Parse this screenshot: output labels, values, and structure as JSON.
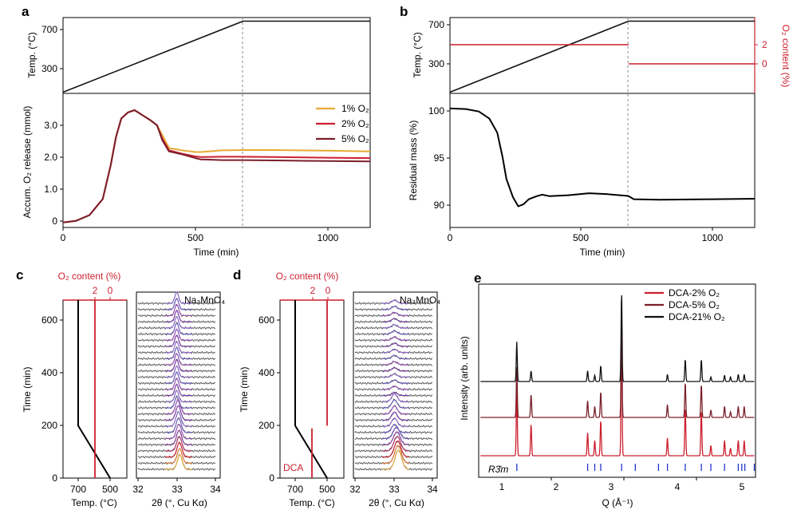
{
  "colors": {
    "o2_1": "#e8a935",
    "o2_2": "#cc1f2e",
    "o2_5": "#7a1f2b",
    "dca_21": "#111111",
    "o2_axis": "#cc1f2e",
    "dashed": "#8a8a8a",
    "tick_marks": "#2233cc"
  },
  "panels": {
    "a": {
      "label": "a",
      "temp_ylabel": "Temp. (°C)",
      "release_ylabel": "Accum. O₂ release (mmol)",
      "xlabel": "Time (min)",
      "temp_yticks": [
        "300",
        "700"
      ],
      "release_yticks": [
        "0",
        "1.0",
        "2.0",
        "3.0"
      ],
      "xticks": [
        "0",
        "500",
        "1000"
      ],
      "legend": [
        "1% O₂",
        "2% O₂",
        "5% O₂"
      ]
    },
    "b": {
      "label": "b",
      "temp_ylabel": "Temp. (°C)",
      "o2_ylabel": "O₂ content (%)",
      "mass_ylabel": "Residual mass (%)",
      "xlabel": "Time (min)",
      "temp_yticks": [
        "300",
        "700"
      ],
      "o2_yticks": [
        "2",
        "0"
      ],
      "mass_yticks": [
        "90",
        "95",
        "100"
      ],
      "xticks": [
        "0",
        "500",
        "1000"
      ]
    },
    "c": {
      "label": "c",
      "o2_title": "O₂ content (%)",
      "o2_ticks": [
        "2",
        "0"
      ],
      "ylabel": "Time (min)",
      "yticks": [
        "0",
        "200",
        "400",
        "600"
      ],
      "temp_xlabel": "Temp. (°C)",
      "temp_xticks": [
        "700",
        "500"
      ],
      "xrd_label": "Na₃MnO₄",
      "xrd_xlabel": "2θ (°, Cu Kα)",
      "xrd_xticks": [
        "32",
        "33",
        "34"
      ]
    },
    "d": {
      "label": "d",
      "o2_title": "O₂ content (%)",
      "o2_ticks": [
        "2",
        "0"
      ],
      "ylabel": "Time (min)",
      "yticks": [
        "0",
        "200",
        "400",
        "600"
      ],
      "temp_xlabel": "Temp. (°C)",
      "temp_xticks": [
        "700",
        "500"
      ],
      "dca_label": "DCA",
      "xrd_label": "Na₃MnO₄",
      "xrd_xlabel": "2θ (°, Cu Kα)",
      "xrd_xticks": [
        "32",
        "33",
        "34"
      ]
    },
    "e": {
      "label": "e",
      "ylabel": "Intensity (arb. units)",
      "xlabel": "Q (Å⁻¹)",
      "xticks": [
        "1",
        "2",
        "3",
        "4",
        "5"
      ],
      "legend": [
        "DCA-2% O₂",
        "DCA-5% O₂",
        "DCA-21% O₂"
      ],
      "space_group": "R3̄m"
    }
  },
  "chart_data": [
    {
      "type": "line",
      "panel": "a-top",
      "ylabel": "Temp. (°C)",
      "xlabel": "",
      "xlim": [
        0,
        1160
      ],
      "ylim": [
        90,
        730
      ],
      "series": [
        {
          "x": [
            0,
            680,
            1160
          ],
          "y": [
            100,
            700,
            700
          ]
        }
      ],
      "annotations": [
        "dashed vertical line at 680 min"
      ]
    },
    {
      "type": "line",
      "panel": "a-bottom",
      "ylabel": "Accum. O₂ release (mmol)",
      "xlabel": "Time (min)",
      "xlim": [
        0,
        1160
      ],
      "ylim": [
        -0.15,
        3.85
      ],
      "series": [
        {
          "name": "1% O₂",
          "x": [
            0,
            50,
            100,
            150,
            180,
            200,
            220,
            245,
            270,
            300,
            330,
            355,
            375,
            400,
            450,
            500,
            520,
            600,
            680,
            800,
            1000,
            1160
          ],
          "y": [
            0,
            0.05,
            0.22,
            0.7,
            1.7,
            2.55,
            3.1,
            3.28,
            3.35,
            3.2,
            3.05,
            2.9,
            2.6,
            2.22,
            2.15,
            2.1,
            2.1,
            2.15,
            2.16,
            2.16,
            2.14,
            2.12
          ]
        },
        {
          "name": "2% O₂",
          "x": [
            0,
            50,
            100,
            150,
            180,
            200,
            220,
            245,
            270,
            300,
            330,
            355,
            375,
            400,
            450,
            500,
            520,
            600,
            680,
            800,
            1000,
            1160
          ],
          "y": [
            0,
            0.05,
            0.22,
            0.7,
            1.7,
            2.55,
            3.1,
            3.28,
            3.35,
            3.2,
            3.05,
            2.9,
            2.5,
            2.15,
            2.05,
            1.97,
            1.95,
            1.96,
            1.96,
            1.95,
            1.93,
            1.92
          ]
        },
        {
          "name": "5% O₂",
          "x": [
            0,
            50,
            100,
            150,
            180,
            200,
            220,
            245,
            270,
            300,
            330,
            355,
            375,
            400,
            450,
            500,
            520,
            600,
            680,
            800,
            1000,
            1160
          ],
          "y": [
            0,
            0.05,
            0.22,
            0.7,
            1.7,
            2.55,
            3.1,
            3.28,
            3.35,
            3.2,
            3.05,
            2.9,
            2.45,
            2.12,
            2.03,
            1.92,
            1.88,
            1.86,
            1.86,
            1.85,
            1.83,
            1.82
          ]
        }
      ],
      "legend_position": "top-right"
    },
    {
      "type": "line",
      "panel": "b-top",
      "ylabel": "Temp. (°C)",
      "y2label": "O₂ content (%)",
      "xlim": [
        0,
        1160
      ],
      "ylim": [
        90,
        730
      ],
      "series": [
        {
          "axis": "temp",
          "x": [
            0,
            680,
            1160
          ],
          "y": [
            100,
            700,
            700
          ]
        },
        {
          "axis": "o2",
          "x": [
            0,
            680
          ],
          "y": [
            2,
            2
          ]
        },
        {
          "axis": "o2",
          "x": [
            680,
            1160
          ],
          "y": [
            0,
            0
          ]
        }
      ]
    },
    {
      "type": "line",
      "panel": "b-bottom",
      "ylabel": "Residual mass (%)",
      "xlabel": "Time (min)",
      "xlim": [
        0,
        1160
      ],
      "ylim": [
        88.2,
        101.5
      ],
      "series": [
        {
          "x": [
            0,
            60,
            110,
            150,
            180,
            200,
            215,
            240,
            260,
            280,
            300,
            330,
            350,
            380,
            450,
            530,
            600,
            670,
            680,
            700,
            800,
            1000,
            1160
          ],
          "y": [
            100,
            99.95,
            99.7,
            99.0,
            97.6,
            95.2,
            93.0,
            91.2,
            90.3,
            90.5,
            91.0,
            91.3,
            91.45,
            91.3,
            91.4,
            91.6,
            91.5,
            91.35,
            91.3,
            91.0,
            90.95,
            91.0,
            91.05
          ]
        }
      ]
    },
    {
      "type": "line",
      "panel": "c-left",
      "ylabel": "Time (min)",
      "xlabel": "Temp. (°C)",
      "ylim": [
        0,
        680
      ],
      "series": [
        {
          "axis": "temp",
          "x": [
            500,
            700,
            700
          ],
          "y": [
            0,
            200,
            680
          ]
        },
        {
          "axis": "o2",
          "x": [
            2,
            2
          ],
          "y": [
            0,
            680
          ]
        }
      ]
    },
    {
      "type": "line",
      "panel": "d-left",
      "ylabel": "Time (min)",
      "xlabel": "Temp. (°C)",
      "ylim": [
        0,
        680
      ],
      "series": [
        {
          "axis": "temp",
          "x": [
            500,
            700,
            700
          ],
          "y": [
            0,
            200,
            680
          ]
        },
        {
          "axis": "o2",
          "x": [
            2,
            2
          ],
          "y": [
            0,
            190
          ]
        },
        {
          "axis": "o2",
          "x": [
            0,
            0
          ],
          "y": [
            200,
            680
          ]
        }
      ]
    },
    {
      "type": "line",
      "panel": "e",
      "xlabel": "Q (Å⁻¹)",
      "ylabel": "Intensity (arb. units)",
      "xlim": [
        0.55,
        5.2
      ],
      "series": [
        {
          "name": "DCA-2% O₂",
          "peaks_q": [
            1.19,
            1.43,
            2.38,
            2.5,
            2.6,
            2.95,
            3.72,
            4.02,
            4.29,
            4.45,
            4.68,
            4.78,
            4.91,
            5.01
          ],
          "peaks_rel": [
            0.55,
            0.25,
            0.18,
            0.12,
            0.28,
            1.0,
            0.14,
            0.38,
            0.36,
            0.08,
            0.12,
            0.06,
            0.12,
            0.12
          ]
        },
        {
          "name": "DCA-5% O₂",
          "peaks_q": [
            1.19,
            1.43,
            2.38,
            2.5,
            2.6,
            2.95,
            3.72,
            4.02,
            4.29,
            4.45,
            4.68,
            4.78,
            4.91,
            5.01
          ],
          "peaks_rel": [
            0.55,
            0.25,
            0.18,
            0.12,
            0.28,
            1.0,
            0.14,
            0.38,
            0.36,
            0.08,
            0.12,
            0.06,
            0.12,
            0.12
          ]
        },
        {
          "name": "DCA-21% O₂",
          "peaks_q": [
            1.19,
            1.43,
            2.38,
            2.5,
            2.6,
            2.95,
            3.72,
            4.02,
            4.29,
            4.45,
            4.68,
            4.78,
            4.91,
            5.01
          ],
          "peaks_rel": [
            0.45,
            0.12,
            0.12,
            0.07,
            0.18,
            1.0,
            0.08,
            0.25,
            0.25,
            0.05,
            0.07,
            0.05,
            0.08,
            0.08
          ]
        }
      ],
      "reference_ticks_q": [
        1.19,
        2.38,
        2.5,
        2.6,
        2.95,
        3.18,
        3.57,
        3.72,
        4.02,
        4.29,
        4.45,
        4.68,
        4.91,
        4.97,
        5.02,
        5.18
      ],
      "legend_position": "top-right"
    }
  ]
}
